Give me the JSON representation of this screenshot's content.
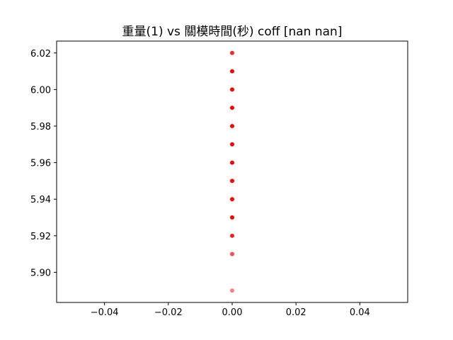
{
  "chart_data": {
    "type": "scatter",
    "title": "重量(1) vs 關模時間(秒) coff [nan nan]",
    "xlabel": "",
    "ylabel": "",
    "xlim": [
      -0.055,
      0.055
    ],
    "ylim": [
      5.8835,
      6.0265
    ],
    "x_ticks": [
      -0.04,
      -0.02,
      0.0,
      0.02,
      0.04
    ],
    "x_tick_labels": [
      "−0.04",
      "−0.02",
      "0.00",
      "0.02",
      "0.04"
    ],
    "y_ticks": [
      5.9,
      5.92,
      5.94,
      5.96,
      5.98,
      6.0,
      6.02
    ],
    "y_tick_labels": [
      "5.90",
      "5.92",
      "5.94",
      "5.96",
      "5.98",
      "6.00",
      "6.02"
    ],
    "grid": false,
    "legend": "none",
    "marker_color": "#ff0000",
    "points": [
      {
        "x": 0.0,
        "y": 6.02,
        "alpha": 0.85
      },
      {
        "x": 0.0,
        "y": 6.01,
        "alpha": 1.0
      },
      {
        "x": 0.0,
        "y": 6.0,
        "alpha": 1.0
      },
      {
        "x": 0.0,
        "y": 5.99,
        "alpha": 1.0
      },
      {
        "x": 0.0,
        "y": 5.98,
        "alpha": 1.0
      },
      {
        "x": 0.0,
        "y": 5.97,
        "alpha": 1.0
      },
      {
        "x": 0.0,
        "y": 5.96,
        "alpha": 1.0
      },
      {
        "x": 0.0,
        "y": 5.95,
        "alpha": 1.0
      },
      {
        "x": 0.0,
        "y": 5.94,
        "alpha": 1.0
      },
      {
        "x": 0.0,
        "y": 5.93,
        "alpha": 1.0
      },
      {
        "x": 0.0,
        "y": 5.92,
        "alpha": 0.9
      },
      {
        "x": 0.0,
        "y": 5.91,
        "alpha": 0.7
      },
      {
        "x": 0.0,
        "y": 5.89,
        "alpha": 0.5
      }
    ]
  }
}
